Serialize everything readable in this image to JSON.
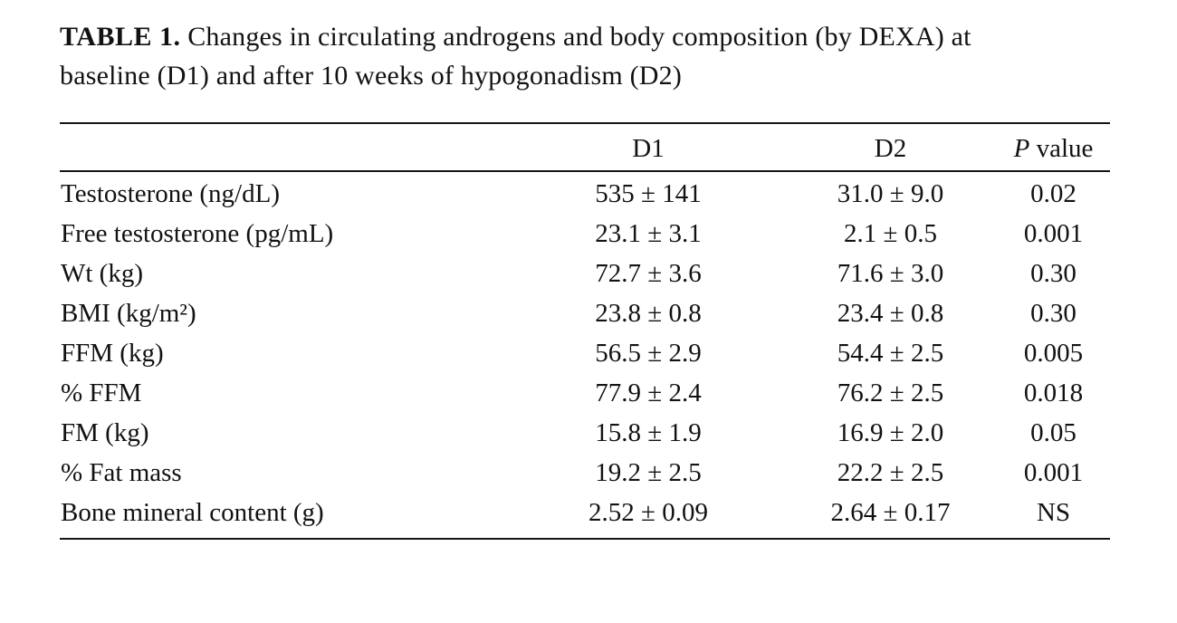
{
  "caption": {
    "label": "TABLE 1.",
    "text": "Changes in circulating androgens and body composition (by DEXA) at baseline (D1) and after 10 weeks of hypogonadism (D2)"
  },
  "table": {
    "columns": {
      "label": "",
      "d1": "D1",
      "d2": "D2",
      "p_italic": "P",
      "p_rest": "value"
    },
    "rows": [
      {
        "label": "Testosterone (ng/dL)",
        "d1": "535 ± 141",
        "d2": "31.0 ± 9.0",
        "p": "0.02"
      },
      {
        "label": "Free testosterone (pg/mL)",
        "d1": "23.1 ± 3.1",
        "d2": "2.1 ± 0.5",
        "p": "0.001"
      },
      {
        "label": "Wt (kg)",
        "d1": "72.7 ± 3.6",
        "d2": "71.6 ± 3.0",
        "p": "0.30"
      },
      {
        "label": "BMI (kg/m²)",
        "d1": "23.8 ± 0.8",
        "d2": "23.4 ± 0.8",
        "p": "0.30"
      },
      {
        "label": "FFM (kg)",
        "d1": "56.5 ± 2.9",
        "d2": "54.4 ± 2.5",
        "p": "0.005"
      },
      {
        "label": "% FFM",
        "d1": "77.9 ± 2.4",
        "d2": "76.2 ± 2.5",
        "p": "0.018"
      },
      {
        "label": "FM (kg)",
        "d1": "15.8 ± 1.9",
        "d2": "16.9 ± 2.0",
        "p": "0.05"
      },
      {
        "label": "% Fat mass",
        "d1": "19.2 ± 2.5",
        "d2": "22.2 ± 2.5",
        "p": "0.001"
      },
      {
        "label": "Bone mineral content (g)",
        "d1": "2.52 ± 0.09",
        "d2": "2.64 ± 0.17",
        "p": "NS"
      }
    ]
  }
}
